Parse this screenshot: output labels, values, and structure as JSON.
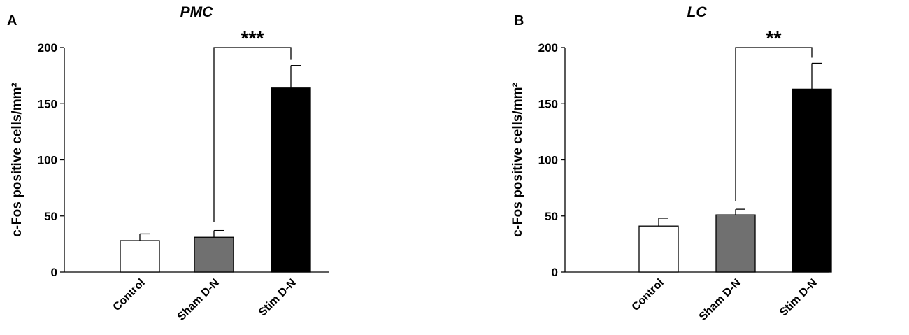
{
  "chart_data": [
    {
      "type": "bar",
      "panel": "A",
      "title": "PMC",
      "ylabel": "c-Fos positive cells/mm²",
      "categories": [
        "Control",
        "Sham D-N",
        "Stim D-N"
      ],
      "values": [
        28,
        31,
        164
      ],
      "errors": [
        6,
        6,
        20
      ],
      "colors": [
        "#ffffff",
        "#707070",
        "#000000"
      ],
      "ylim": [
        0,
        200
      ],
      "yticks": [
        0,
        50,
        100,
        150,
        200
      ],
      "annotation": "***"
    },
    {
      "type": "bar",
      "panel": "B",
      "title": "LC",
      "ylabel": "c-Fos positive cells/mm²",
      "categories": [
        "Control",
        "Sham D-N",
        "Stim D-N"
      ],
      "values": [
        41,
        51,
        163
      ],
      "errors": [
        7,
        5,
        23
      ],
      "colors": [
        "#ffffff",
        "#707070",
        "#000000"
      ],
      "ylim": [
        0,
        200
      ],
      "yticks": [
        0,
        50,
        100,
        150,
        200
      ],
      "annotation": "**"
    }
  ]
}
